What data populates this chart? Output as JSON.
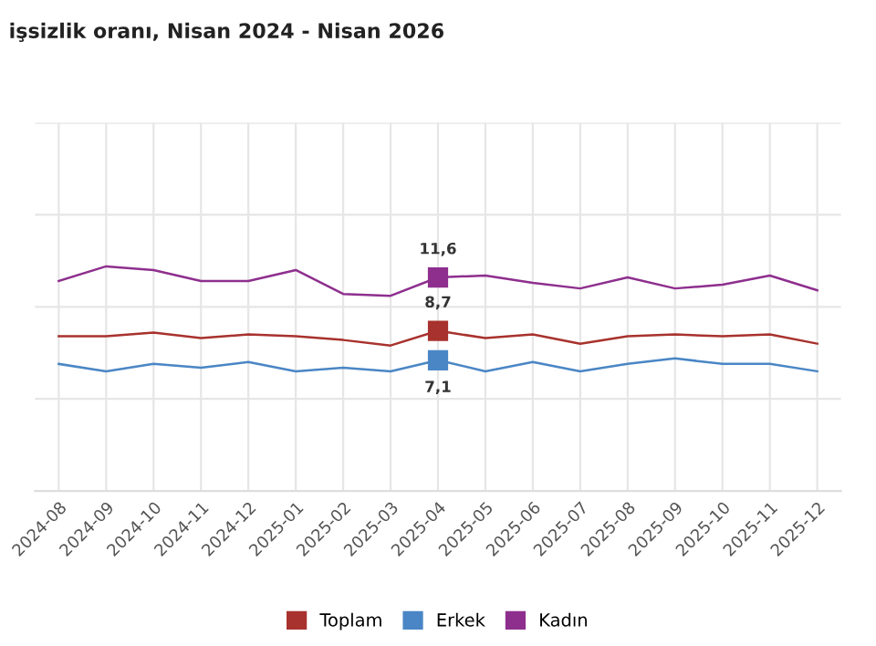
{
  "chart_data": {
    "type": "line",
    "title": "işsizlik oranı, Nisan 2024 - Nisan 2026",
    "categories": [
      "2024-08",
      "2024-09",
      "2024-10",
      "2024-11",
      "2024-12",
      "2025-01",
      "2025-02",
      "2025-03",
      "2025-04",
      "2025-05",
      "2025-06",
      "2025-07",
      "2025-08",
      "2025-09",
      "2025-10",
      "2025-11",
      "2025-12"
    ],
    "series": [
      {
        "name": "Toplam",
        "color": "#a8322d",
        "values": [
          8.4,
          8.4,
          8.6,
          8.3,
          8.5,
          8.4,
          8.2,
          7.9,
          8.7,
          8.3,
          8.5,
          8.0,
          8.4,
          8.5,
          8.4,
          8.5,
          8.0
        ],
        "value_labels": [
          null,
          null,
          null,
          null,
          null,
          null,
          null,
          null,
          "8,7",
          null,
          null,
          null,
          null,
          null,
          null,
          null,
          null
        ]
      },
      {
        "name": "Erkek",
        "color": "#4a86c5",
        "values": [
          6.9,
          6.5,
          6.9,
          6.7,
          7.0,
          6.5,
          6.7,
          6.5,
          7.1,
          6.5,
          7.0,
          6.5,
          6.9,
          7.2,
          6.9,
          6.9,
          6.5
        ],
        "value_labels": [
          null,
          null,
          null,
          null,
          null,
          null,
          null,
          null,
          "7,1",
          null,
          null,
          null,
          null,
          null,
          null,
          null,
          null
        ]
      },
      {
        "name": "Kadın",
        "color": "#8e2f8e",
        "values": [
          11.4,
          12.2,
          12.0,
          11.4,
          11.4,
          12.0,
          10.7,
          10.6,
          11.6,
          11.7,
          11.3,
          11.0,
          11.6,
          11.0,
          11.2,
          11.7,
          10.9
        ],
        "value_labels": [
          null,
          null,
          null,
          null,
          null,
          null,
          null,
          null,
          "11,6",
          null,
          null,
          null,
          null,
          null,
          null,
          null,
          null
        ]
      }
    ],
    "ylim": [
      0,
      20
    ],
    "yticks": [
      {
        "value": 0,
        "label": null
      },
      {
        "value": 5,
        "label": null
      },
      {
        "value": 10,
        "label": null
      },
      {
        "value": 15,
        "label": null
      },
      {
        "value": 20,
        "label": null
      }
    ],
    "tick_labels": "x",
    "grid": true,
    "legend": "bottom"
  }
}
